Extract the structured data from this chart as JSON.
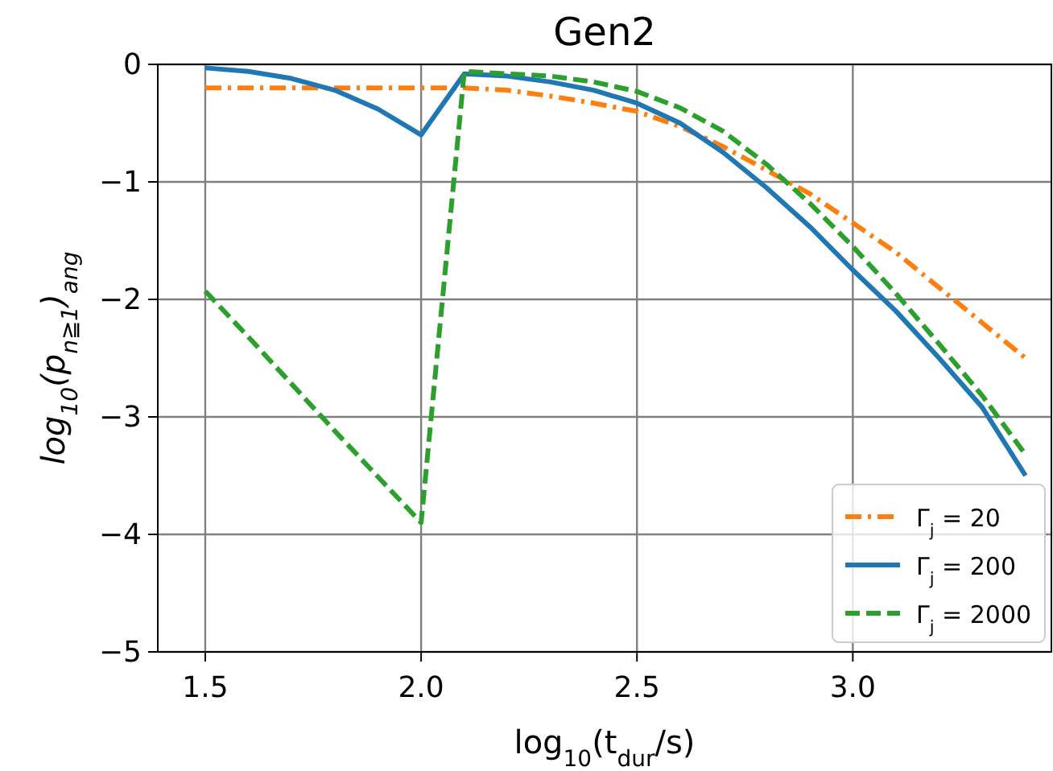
{
  "chart_data": {
    "type": "line",
    "title": "Gen2",
    "xlabel": "log$_{10}$(t$_{dur}$/s)",
    "ylabel": "log$_{10}$(p$_{n≧1}$)$_{ang}$",
    "x": [
      1.5,
      1.6,
      1.7,
      1.8,
      1.9,
      2.0,
      2.1,
      2.2,
      2.3,
      2.4,
      2.5,
      2.6,
      2.7,
      2.8,
      2.9,
      3.0,
      3.1,
      3.2,
      3.3,
      3.4
    ],
    "series": [
      {
        "name": "Γ$_{j}$ = 20",
        "color": "#ff7f0e",
        "line_style": "dashdot",
        "values": [
          -0.2,
          -0.2,
          -0.2,
          -0.2,
          -0.2,
          -0.2,
          -0.2,
          -0.22,
          -0.27,
          -0.33,
          -0.4,
          -0.53,
          -0.7,
          -0.9,
          -1.1,
          -1.35,
          -1.6,
          -1.9,
          -2.2,
          -2.5
        ]
      },
      {
        "name": "Γ$_{j}$ = 200",
        "color": "#1f77b4",
        "line_style": "solid",
        "values": [
          -0.03,
          -0.06,
          -0.12,
          -0.22,
          -0.38,
          -0.6,
          -0.08,
          -0.1,
          -0.15,
          -0.22,
          -0.33,
          -0.5,
          -0.75,
          -1.05,
          -1.38,
          -1.75,
          -2.1,
          -2.5,
          -2.92,
          -3.5
        ]
      },
      {
        "name": "Γ$_{j}$ = 2000",
        "color": "#2ca02c",
        "line_style": "dashed",
        "values": [
          -1.93,
          -2.32,
          -2.72,
          -3.12,
          -3.51,
          -3.9,
          -0.06,
          -0.08,
          -0.1,
          -0.15,
          -0.23,
          -0.37,
          -0.57,
          -0.85,
          -1.18,
          -1.55,
          -1.95,
          -2.38,
          -2.82,
          -3.32
        ]
      }
    ],
    "xlim": [
      1.39,
      3.46
    ],
    "ylim": [
      -5,
      0
    ],
    "xticks": [
      1.5,
      {
        "value": 2,
        "label": "2.0"
      },
      2.5,
      {
        "value": 3,
        "label": "3.0"
      }
    ],
    "yticks": [
      -5,
      -4,
      -3,
      -2,
      -1,
      0
    ],
    "grid": true,
    "legend": "bottom right",
    "marker": "none"
  }
}
